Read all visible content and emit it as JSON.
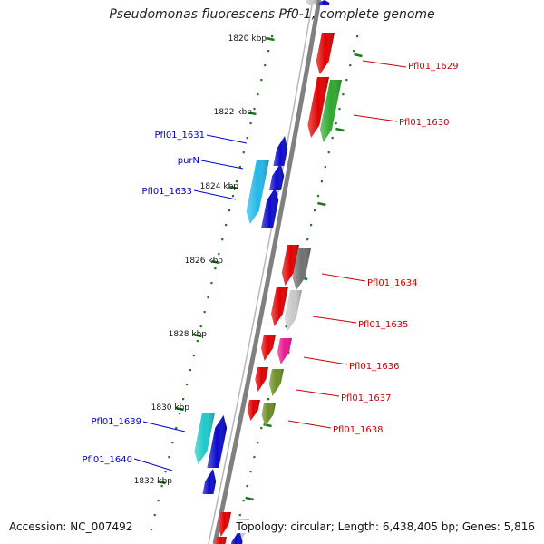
{
  "title": "Pseudomonas fluorescens Pf0-1, complete genome",
  "footer": {
    "accession": "Accession: NC_007492",
    "summary": "Topology: circular; Length: 6,438,405 bp; Genes: 5,816"
  },
  "scale_labels": [
    "1820 kbp",
    "1822 kbp",
    "1824 kbp",
    "1826 kbp",
    "1828 kbp",
    "1830 kbp",
    "1832 kbp"
  ],
  "gene_labels": {
    "forward": [
      "Pfl01_1629",
      "Pfl01_1630",
      "Pfl01_1634",
      "Pfl01_1635",
      "Pfl01_1636",
      "Pfl01_1637",
      "Pfl01_1638"
    ],
    "reverse": [
      "Pfl01_1631",
      "purN",
      "Pfl01_1633",
      "Pfl01_1639",
      "Pfl01_1640"
    ]
  },
  "colors": {
    "forward_label": "#cc0000",
    "reverse_label": "#0000cc",
    "backbone": "#808080",
    "tick": "#1a7a1a",
    "red": "#e00000",
    "blue": "#0a0acc",
    "green": "#2fa82f",
    "cyan": "#22b8e8",
    "teal": "#1ec8c8",
    "dark_gray": "#707070",
    "light_gray": "#c8c8c8",
    "magenta": "#e81890",
    "olive": "#6b8e23",
    "lavender": "#c8c8f0"
  }
}
